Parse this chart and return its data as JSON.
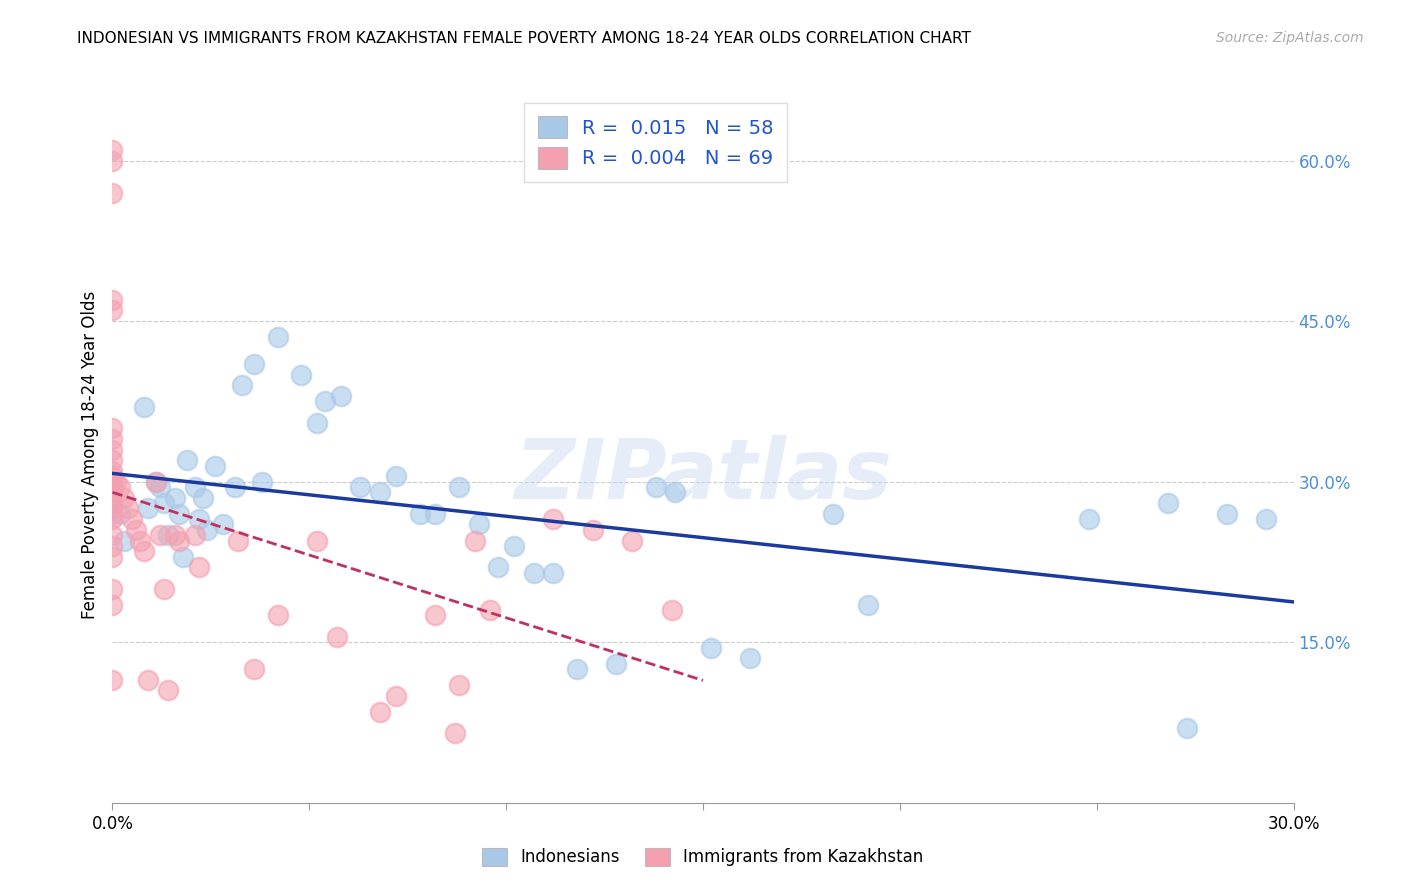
{
  "title": "INDONESIAN VS IMMIGRANTS FROM KAZAKHSTAN FEMALE POVERTY AMONG 18-24 YEAR OLDS CORRELATION CHART",
  "source": "Source: ZipAtlas.com",
  "ylabel": "Female Poverty Among 18-24 Year Olds",
  "xlim": [
    0.0,
    0.3
  ],
  "ylim": [
    0.0,
    0.65
  ],
  "legend_r_blue": "0.015",
  "legend_n_blue": "58",
  "legend_r_pink": "0.004",
  "legend_n_pink": "69",
  "blue_color": "#a8c8e8",
  "pink_color": "#f4a0b0",
  "blue_line_color": "#1a3a9f",
  "pink_line_color": "#c03060",
  "watermark": "ZIPatlas",
  "blue_scatter_x": [
    0.002,
    0.003,
    0.008,
    0.009,
    0.011,
    0.012,
    0.013,
    0.014,
    0.016,
    0.017,
    0.018,
    0.019,
    0.021,
    0.022,
    0.023,
    0.024,
    0.026,
    0.028,
    0.031,
    0.033,
    0.036,
    0.038,
    0.042,
    0.048,
    0.052,
    0.054,
    0.058,
    0.063,
    0.068,
    0.072,
    0.078,
    0.082,
    0.088,
    0.093,
    0.098,
    0.102,
    0.107,
    0.112,
    0.118,
    0.128,
    0.138,
    0.143,
    0.152,
    0.162,
    0.183,
    0.192,
    0.248,
    0.268,
    0.273,
    0.283,
    0.293
  ],
  "blue_scatter_y": [
    0.27,
    0.245,
    0.37,
    0.275,
    0.3,
    0.295,
    0.28,
    0.25,
    0.285,
    0.27,
    0.23,
    0.32,
    0.295,
    0.265,
    0.285,
    0.255,
    0.315,
    0.26,
    0.295,
    0.39,
    0.41,
    0.3,
    0.435,
    0.4,
    0.355,
    0.375,
    0.38,
    0.295,
    0.29,
    0.305,
    0.27,
    0.27,
    0.295,
    0.26,
    0.22,
    0.24,
    0.215,
    0.215,
    0.125,
    0.13,
    0.295,
    0.29,
    0.145,
    0.135,
    0.27,
    0.185,
    0.265,
    0.28,
    0.07,
    0.27,
    0.265
  ],
  "pink_scatter_x": [
    0.0,
    0.0,
    0.0,
    0.0,
    0.0,
    0.0,
    0.0,
    0.0,
    0.0,
    0.0,
    0.0,
    0.0,
    0.0,
    0.0,
    0.0,
    0.0,
    0.0,
    0.0,
    0.0,
    0.0,
    0.0,
    0.0,
    0.0,
    0.0,
    0.0,
    0.001,
    0.002,
    0.003,
    0.004,
    0.005,
    0.006,
    0.007,
    0.008,
    0.009,
    0.011,
    0.012,
    0.013,
    0.014,
    0.016,
    0.017,
    0.021,
    0.022,
    0.032,
    0.036,
    0.042,
    0.052,
    0.057,
    0.068,
    0.072,
    0.082,
    0.087,
    0.088,
    0.092,
    0.096,
    0.112,
    0.122,
    0.132,
    0.142
  ],
  "pink_scatter_y": [
    0.61,
    0.6,
    0.57,
    0.47,
    0.46,
    0.35,
    0.34,
    0.33,
    0.32,
    0.31,
    0.305,
    0.3,
    0.295,
    0.29,
    0.285,
    0.28,
    0.275,
    0.27,
    0.265,
    0.25,
    0.24,
    0.23,
    0.2,
    0.185,
    0.115,
    0.3,
    0.295,
    0.285,
    0.275,
    0.265,
    0.255,
    0.245,
    0.235,
    0.115,
    0.3,
    0.25,
    0.2,
    0.105,
    0.25,
    0.245,
    0.25,
    0.22,
    0.245,
    0.125,
    0.175,
    0.245,
    0.155,
    0.085,
    0.1,
    0.175,
    0.065,
    0.11,
    0.245,
    0.18,
    0.265,
    0.255,
    0.245,
    0.18
  ]
}
